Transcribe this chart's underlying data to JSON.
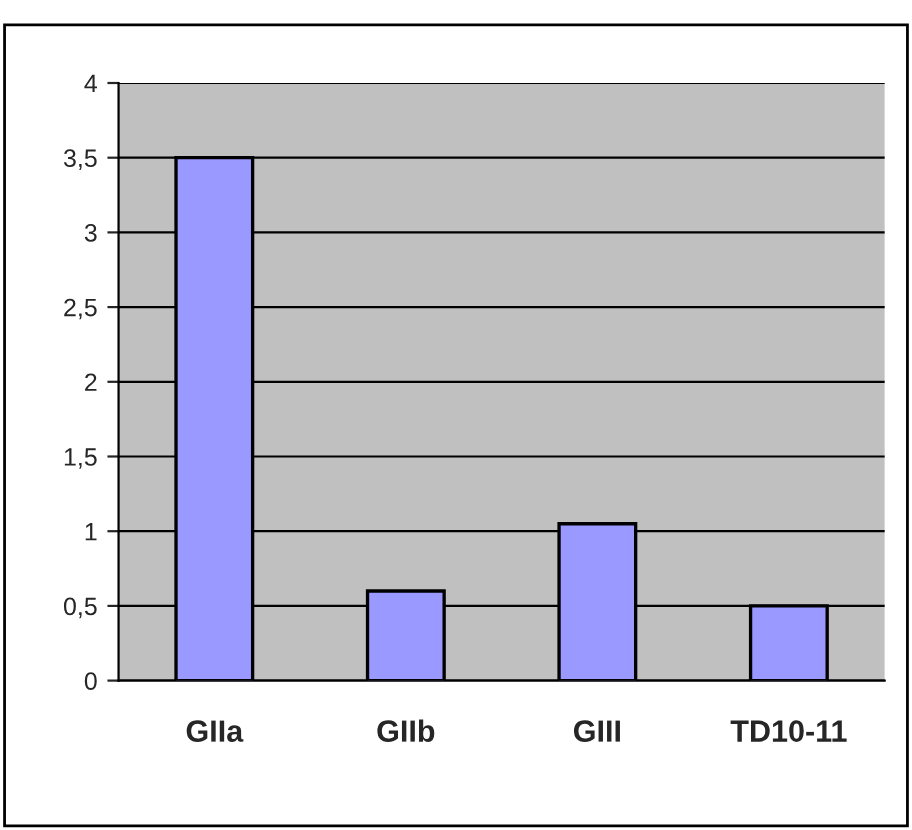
{
  "chart_data": {
    "type": "bar",
    "categories": [
      "GIIa",
      "GIIb",
      "GIII",
      "TD10-11"
    ],
    "values": [
      3.5,
      0.6,
      1.05,
      0.5
    ],
    "color": "#9999ff",
    "ylim": [
      0,
      4
    ],
    "yticks": [
      0,
      {
        "value": 0.5,
        "label": "0,5"
      },
      1,
      {
        "value": 1.5,
        "label": "1,5"
      },
      2,
      {
        "value": 2.5,
        "label": "2,5"
      },
      3,
      {
        "value": 3.5,
        "label": "3,5"
      },
      4
    ],
    "grid": "y",
    "legend": false
  }
}
